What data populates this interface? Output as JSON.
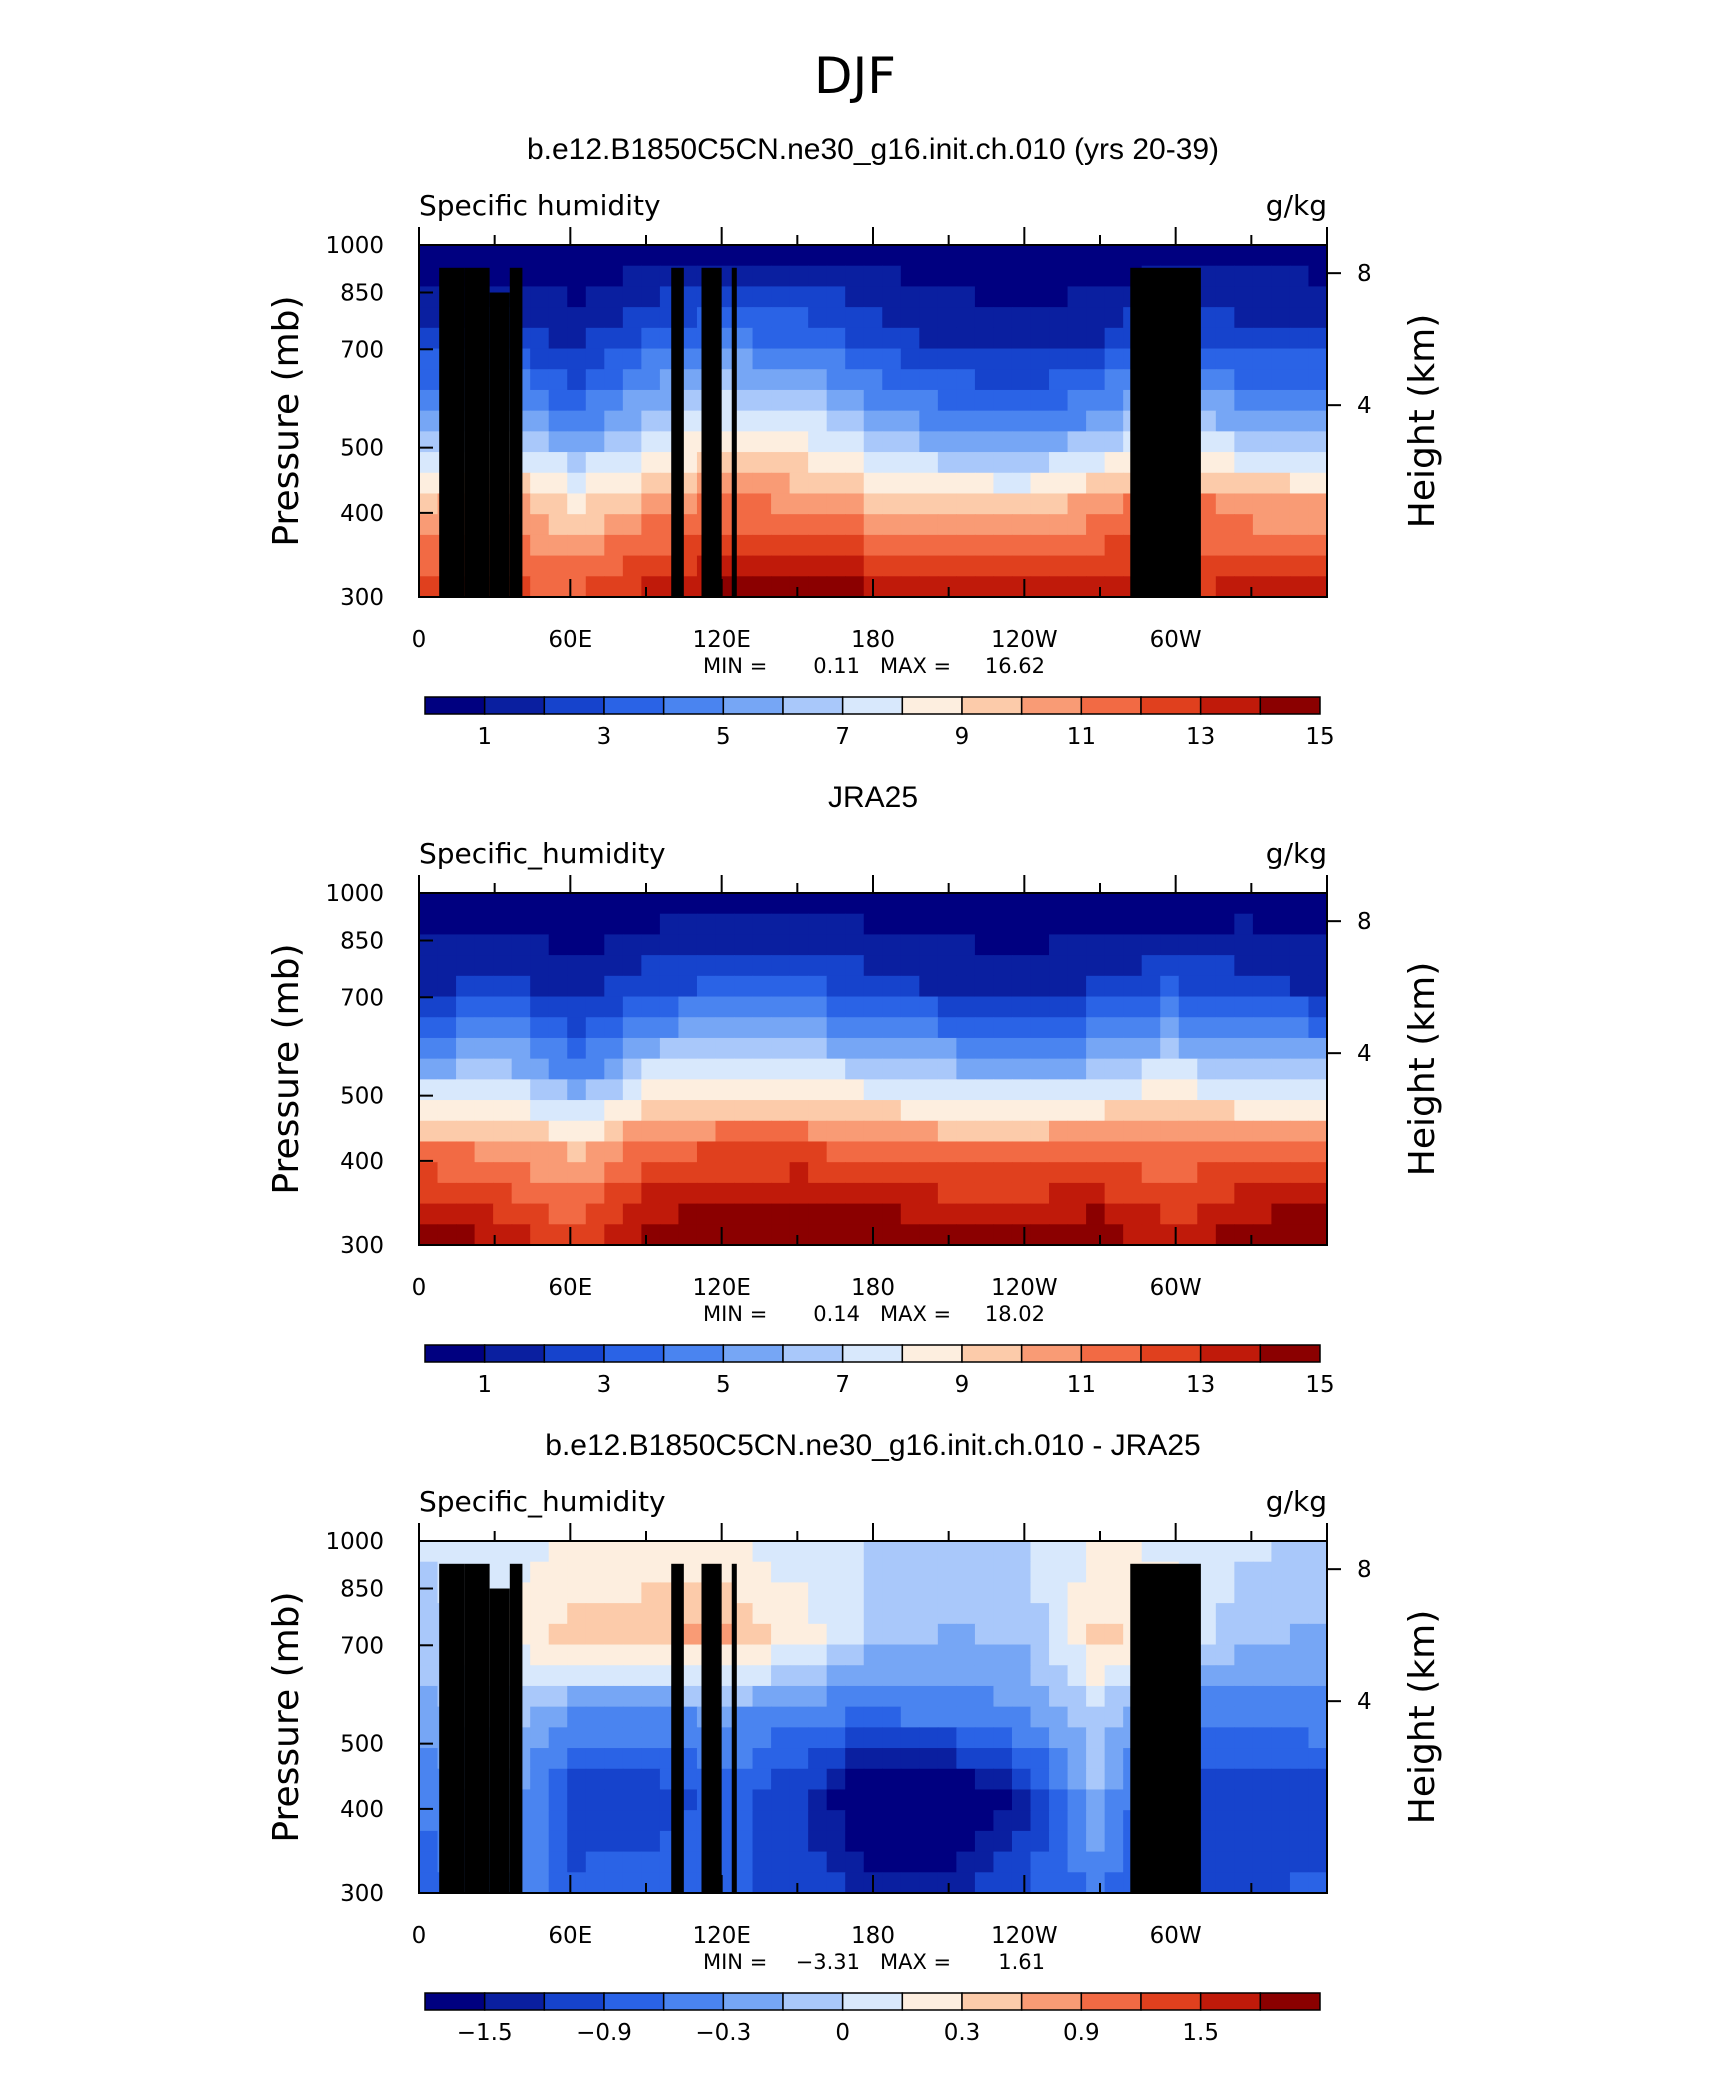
{
  "figure_title": "DJF",
  "chart_data": [
    {
      "type": "heatmap",
      "title": "b.e12.B1850C5CN.ne30_g16.init.ch.010 (yrs 20-39)",
      "left_label": "Specific  humidity",
      "right_label": "g/kg",
      "ylabel": "Pressure (mb)",
      "y2label": "Height (km)",
      "xlim": [
        0,
        360
      ],
      "x_ticks": [
        "0",
        "60E",
        "120E",
        "180",
        "120W",
        "60W"
      ],
      "y_ticks": [
        "300",
        "400",
        "500",
        "700",
        "850",
        "1000"
      ],
      "y2_ticks": [
        "8",
        "4"
      ],
      "ylim": [
        1000,
        300
      ],
      "y_scale": "log",
      "min_label": "MIN =",
      "min_value": "0.11",
      "max_label": "MAX =",
      "max_value": "16.62",
      "colorbar_labels": [
        "1",
        "3",
        "5",
        "7",
        "9",
        "11",
        "13",
        "15"
      ],
      "colorbar_colors": [
        "#000080",
        "#0a1fa0",
        "#1643cc",
        "#2a63e6",
        "#4a84f0",
        "#76a6f5",
        "#a9c8fa",
        "#d8e8fc",
        "#fdeedf",
        "#fccbaa",
        "#f99b75",
        "#f26a44",
        "#e0401e",
        "#c01a0a",
        "#8b0000"
      ],
      "colorbar_range": [
        0,
        16
      ],
      "values_grid": [
        [
          0.4,
          0.4,
          0.3,
          0.5,
          1.0,
          1.0,
          0.8,
          0.5,
          0.3,
          0.3,
          0.4,
          0.9,
          0.6
        ],
        [
          2.5,
          2.8,
          1.8,
          3.5,
          4.5,
          4.0,
          2.8,
          1.8,
          1.5,
          2.0,
          3.8,
          2.5,
          2.4
        ],
        [
          5.5,
          6.5,
          4.5,
          6.8,
          8.5,
          8.0,
          6.0,
          4.8,
          4.5,
          5.5,
          8.0,
          5.8,
          5.8
        ],
        [
          10.5,
          11.5,
          9.5,
          11.0,
          12.0,
          11.5,
          10.5,
          10.0,
          9.8,
          11.0,
          12.5,
          11.0,
          10.8
        ],
        [
          13.5,
          13.0,
          12.5,
          14.0,
          15.0,
          15.5,
          14.8,
          14.0,
          14.0,
          14.5,
          13.5,
          14.0,
          14.2
        ]
      ],
      "topography": [
        {
          "x": [
            8,
            18
          ],
          "p": 925
        },
        {
          "x": [
            18,
            28
          ],
          "p": 925
        },
        {
          "x": [
            28,
            36
          ],
          "p": 850
        },
        {
          "x": [
            36,
            41
          ],
          "p": 925
        },
        {
          "x": [
            100,
            105
          ],
          "p": 925
        },
        {
          "x": [
            112,
            120
          ],
          "p": 925
        },
        {
          "x": [
            124,
            126
          ],
          "p": 925
        },
        {
          "x": [
            282,
            310
          ],
          "p": 925
        }
      ]
    },
    {
      "type": "heatmap",
      "title": "JRA25",
      "left_label": "Specific_humidity",
      "right_label": "g/kg",
      "ylabel": "Pressure (mb)",
      "y2label": "Height (km)",
      "xlim": [
        0,
        360
      ],
      "x_ticks": [
        "0",
        "60E",
        "120E",
        "180",
        "120W",
        "60W"
      ],
      "y_ticks": [
        "300",
        "400",
        "500",
        "700",
        "850",
        "1000"
      ],
      "y2_ticks": [
        "8",
        "4"
      ],
      "ylim": [
        1000,
        300
      ],
      "y_scale": "log",
      "min_label": "MIN =",
      "min_value": "0.14",
      "max_label": "MAX =",
      "max_value": "18.02",
      "colorbar_labels": [
        "1",
        "3",
        "5",
        "7",
        "9",
        "11",
        "13",
        "15"
      ],
      "colorbar_colors": [
        "#000080",
        "#0a1fa0",
        "#1643cc",
        "#2a63e6",
        "#4a84f0",
        "#76a6f5",
        "#a9c8fa",
        "#d8e8fc",
        "#fdeedf",
        "#fccbaa",
        "#f99b75",
        "#f26a44",
        "#e0401e",
        "#c01a0a",
        "#8b0000"
      ],
      "colorbar_range": [
        0,
        16
      ],
      "values_grid": [
        [
          0.3,
          0.3,
          0.2,
          0.4,
          0.6,
          0.6,
          0.5,
          0.4,
          0.2,
          0.3,
          0.3,
          0.6,
          0.3
        ],
        [
          2.0,
          2.5,
          1.5,
          2.8,
          3.5,
          3.5,
          2.5,
          2.0,
          1.6,
          2.2,
          3.2,
          2.5,
          2.0
        ],
        [
          6.0,
          7.0,
          4.5,
          7.5,
          8.0,
          8.0,
          7.0,
          6.5,
          6.0,
          6.5,
          7.8,
          6.5,
          6.5
        ],
        [
          12.0,
          11.5,
          10.5,
          12.5,
          13.0,
          13.0,
          12.5,
          12.0,
          12.0,
          12.5,
          12.0,
          12.5,
          12.5
        ],
        [
          15.5,
          14.5,
          13.0,
          15.5,
          16.0,
          16.5,
          16.0,
          15.5,
          15.5,
          15.8,
          14.0,
          15.5,
          16.0
        ]
      ],
      "topography": []
    },
    {
      "type": "heatmap",
      "title": "b.e12.B1850C5CN.ne30_g16.init.ch.010 - JRA25",
      "left_label": "Specific_humidity",
      "right_label": "g/kg",
      "ylabel": "Pressure (mb)",
      "y2label": "Height (km)",
      "xlim": [
        0,
        360
      ],
      "x_ticks": [
        "0",
        "60E",
        "120E",
        "180",
        "120W",
        "60W"
      ],
      "y_ticks": [
        "300",
        "400",
        "500",
        "700",
        "850",
        "1000"
      ],
      "y2_ticks": [
        "8",
        "4"
      ],
      "ylim": [
        1000,
        300
      ],
      "y_scale": "log",
      "min_label": "MIN =",
      "min_value": "−3.31",
      "max_label": "MAX =",
      "max_value": "1.61",
      "colorbar_labels": [
        "−1.5",
        "−0.9",
        "−0.3",
        "0",
        "0.3",
        "0.9",
        "1.5"
      ],
      "colorbar_colors": [
        "#000080",
        "#0a1fa0",
        "#1643cc",
        "#2a63e6",
        "#4a84f0",
        "#76a6f5",
        "#a9c8fa",
        "#d8e8fc",
        "#fdeedf",
        "#fccbaa",
        "#f99b75",
        "#f26a44",
        "#e0401e",
        "#c01a0a",
        "#8b0000"
      ],
      "colorbar_range": [
        -2.25,
        2.25
      ],
      "values_grid": [
        [
          -0.15,
          0.05,
          0.2,
          0.2,
          0.2,
          0.0,
          -0.2,
          -0.2,
          -0.2,
          0.2,
          0.1,
          -0.1,
          -0.3
        ],
        [
          -0.3,
          0.2,
          0.6,
          0.7,
          0.8,
          0.3,
          -0.3,
          -0.5,
          -0.4,
          0.5,
          0.3,
          -0.4,
          -0.5
        ],
        [
          -0.6,
          -0.3,
          -0.9,
          -0.9,
          -0.7,
          -1.0,
          -1.1,
          -1.0,
          -0.8,
          -0.2,
          -1.0,
          -1.0,
          -0.9
        ],
        [
          -1.0,
          -0.6,
          -1.5,
          -1.5,
          -1.2,
          -1.6,
          -2.5,
          -2.5,
          -1.8,
          -0.5,
          -1.6,
          -1.6,
          -1.5
        ],
        [
          -1.2,
          -0.8,
          -1.3,
          -1.2,
          -1.2,
          -1.5,
          -1.8,
          -1.8,
          -1.4,
          -1.0,
          -1.3,
          -1.4,
          -1.3
        ]
      ],
      "topography": [
        {
          "x": [
            8,
            18
          ],
          "p": 925
        },
        {
          "x": [
            18,
            28
          ],
          "p": 925
        },
        {
          "x": [
            28,
            36
          ],
          "p": 850
        },
        {
          "x": [
            36,
            41
          ],
          "p": 925
        },
        {
          "x": [
            100,
            105
          ],
          "p": 925
        },
        {
          "x": [
            112,
            120
          ],
          "p": 925
        },
        {
          "x": [
            124,
            126
          ],
          "p": 925
        },
        {
          "x": [
            282,
            310
          ],
          "p": 925
        }
      ]
    }
  ]
}
